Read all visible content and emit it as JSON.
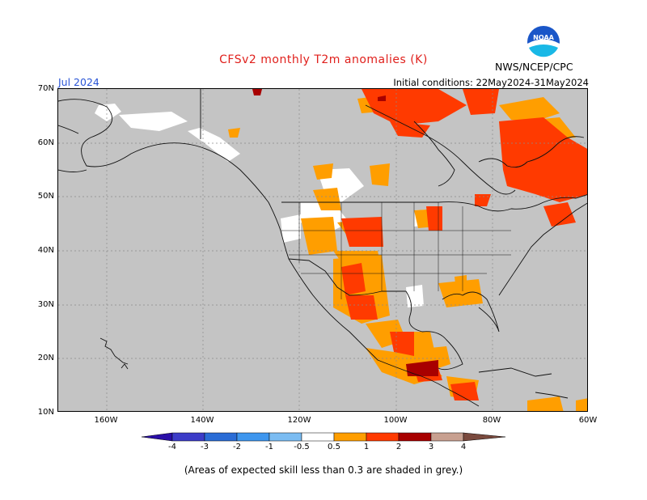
{
  "title": "CFSv2 monthly T2m anomalies (K)",
  "month": "Jul 2024",
  "initial_conditions": "Initial conditions: 22May2024-31May2024",
  "agency": "NWS/NCEP/CPC",
  "logo_text": "NOAA",
  "footnote": "(Areas of expected skill less than 0.3 are shaded in grey.)",
  "map": {
    "lon_range": [
      -170,
      -60
    ],
    "lat_range": [
      10,
      70
    ],
    "y_ticks": [
      "70N",
      "60N",
      "50N",
      "40N",
      "30N",
      "20N",
      "10N"
    ],
    "x_ticks": [
      "160W",
      "140W",
      "120W",
      "100W",
      "80W",
      "60W"
    ],
    "grey_color": "#c4c4c4",
    "land_color": "#ffffff"
  },
  "colorbar": {
    "labels": [
      "-4",
      "-3",
      "-2",
      "-1",
      "-0.5",
      "0.5",
      "1",
      "2",
      "3",
      "4"
    ],
    "colors": [
      "#2a0fa8",
      "#3c3cc8",
      "#2a6cd6",
      "#3e96ee",
      "#7bbcf2",
      "#ffffff",
      "#ff9e00",
      "#ff3a00",
      "#a80000",
      "#c8a090",
      "#7a4a3e"
    ]
  }
}
